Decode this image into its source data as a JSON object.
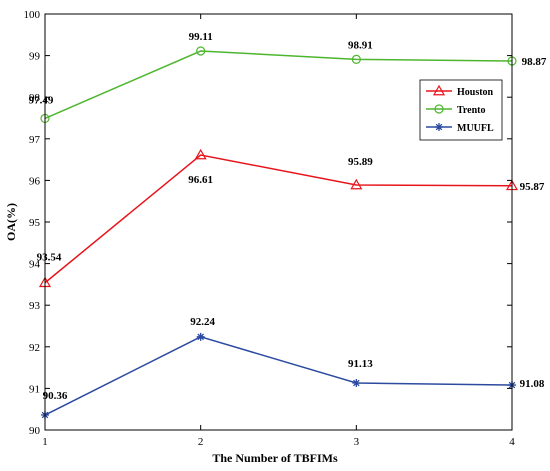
{
  "chart_data": {
    "type": "line",
    "x": [
      1,
      2,
      3,
      4
    ],
    "xlabel": "The Number of TBFIMs",
    "ylabel": "OA(%)",
    "xlim": [
      1,
      4
    ],
    "ylim": [
      90,
      100
    ],
    "xticks": [
      "1",
      "2",
      "3",
      "4"
    ],
    "yticks": [
      "90",
      "91",
      "92",
      "93",
      "94",
      "95",
      "96",
      "97",
      "98",
      "99",
      "100"
    ],
    "grid": false,
    "legend_position": "top-right",
    "series": [
      {
        "name": "Houston",
        "values": [
          93.54,
          96.61,
          95.89,
          95.87
        ],
        "labels": [
          "93.54",
          "96.61",
          "95.89",
          "95.87"
        ],
        "color": "#e8141b",
        "marker": "triangle"
      },
      {
        "name": "Trento",
        "values": [
          97.49,
          99.11,
          98.91,
          98.87
        ],
        "labels": [
          "97.49",
          "99.11",
          "98.91",
          "98.87"
        ],
        "color": "#4db52e",
        "marker": "circle"
      },
      {
        "name": "MUUFL",
        "values": [
          90.36,
          92.24,
          91.13,
          91.08
        ],
        "labels": [
          "90.36",
          "92.24",
          "91.13",
          "91.08"
        ],
        "color": "#2b4aa0",
        "marker": "star"
      }
    ]
  }
}
